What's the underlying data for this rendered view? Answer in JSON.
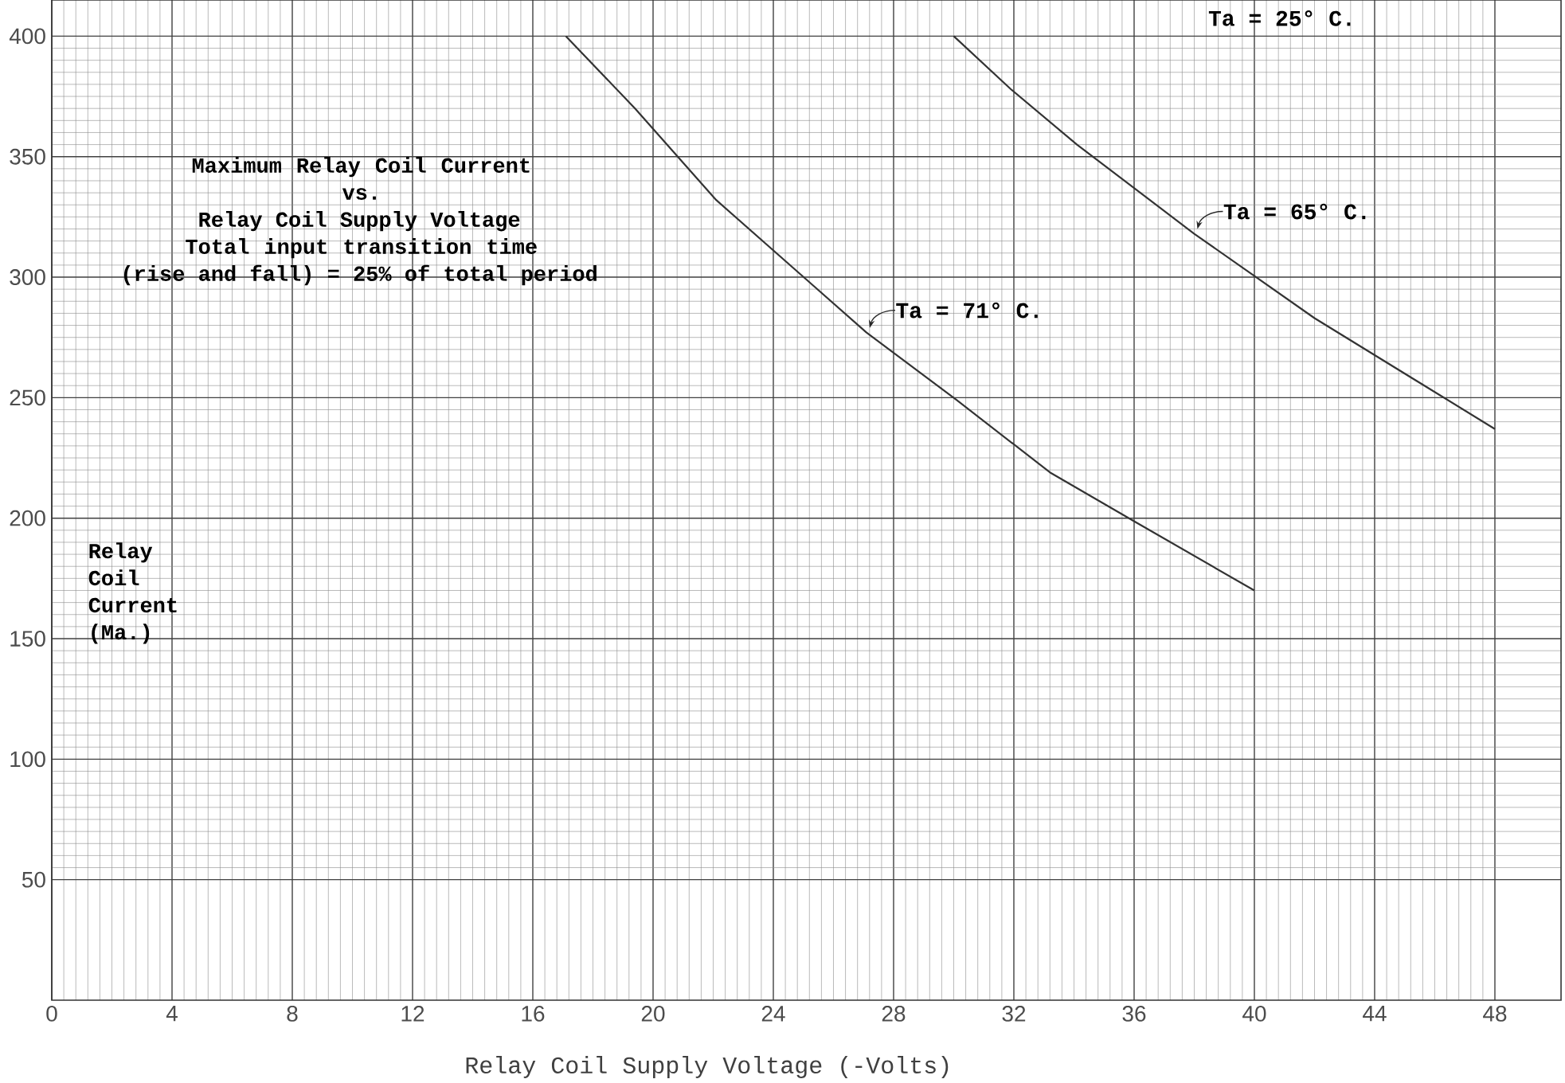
{
  "chart_data": {
    "type": "line",
    "title": "Maximum Relay Coil Current vs. Relay Coil Supply Voltage",
    "subtitle": "Total input transition time (rise and fall) = 25% of total period",
    "xlabel": "Relay Coil Supply Voltage (-Volts)",
    "ylabel": "Relay Coil Current (Ma.)",
    "series": [
      {
        "color": "#333333",
        "x": [
          17.1,
          19.4,
          22.1,
          27.1,
          30.1,
          33.2,
          36.1,
          40.0
        ],
        "values": [
          400,
          370,
          332,
          277,
          249,
          219,
          198,
          170
        ]
      },
      {
        "color": "#333333",
        "x": [
          30.0,
          31.9,
          34.1,
          38.0,
          42.0,
          48.0
        ],
        "values": [
          400,
          378,
          355,
          318,
          283,
          237
        ]
      }
    ],
    "annotations": [
      {
        "text": "Ta = 71° C.",
        "x": 27.1,
        "y": 277
      },
      {
        "text": "Ta = 65° C.",
        "x": 38.0,
        "y": 318
      },
      "Ta = 25° C."
    ],
    "xlim": [
      0,
      50.2
    ],
    "ylim": [
      0,
      415
    ],
    "xticks": [
      0,
      4,
      8,
      12,
      16,
      20,
      24,
      28,
      32,
      36,
      40,
      44,
      48
    ],
    "yticks": [
      50,
      100,
      150,
      200,
      250,
      300,
      350,
      400
    ],
    "grid": true,
    "marker": "none",
    "line_style": "solid"
  }
}
